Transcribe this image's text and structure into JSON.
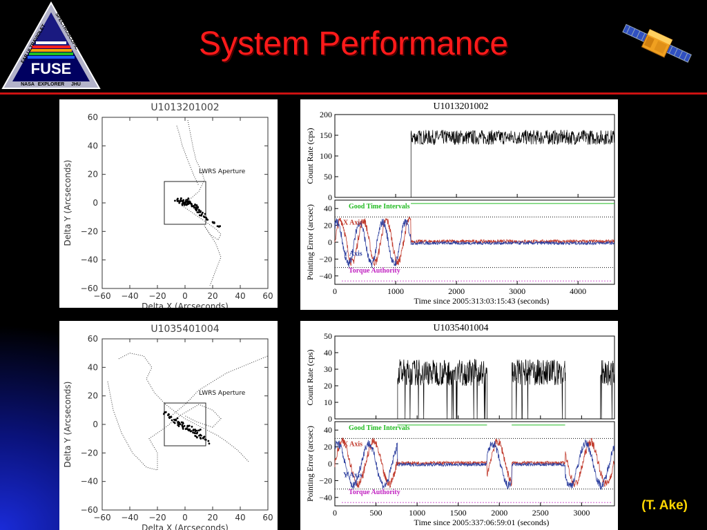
{
  "slide": {
    "title": "System Performance",
    "credit": "(T. Ake)",
    "accent": "#ff1a1a",
    "credit_color": "#ffd700"
  },
  "logo": {
    "arc_left": "FAR ULTRAVIOLET",
    "arc_right": "SPECTROSCOPIC",
    "name": "FUSE",
    "bottom_left": "NASA",
    "bottom_mid": "EXPLORER",
    "bottom_right": "JHU",
    "icon": "fuse-mission-logo-icon"
  },
  "satellite": {
    "icon": "satellite-icon"
  },
  "chart_data": [
    {
      "type": "scatter",
      "title": "U1013201002",
      "xlabel": "Delta X (Arcseconds)",
      "ylabel": "Delta Y (Arcseconds)",
      "xlim": [
        -60,
        60
      ],
      "ylim": [
        -60,
        60
      ],
      "xticks": [
        "−60",
        "−40",
        "−20",
        "0",
        "20",
        "40",
        "60"
      ],
      "yticks": [
        "60",
        "40",
        "20",
        "0",
        "−20",
        "−40",
        "−60"
      ],
      "annotation": "LWRS Aperture",
      "aperture_box": {
        "x": [
          -15,
          15
        ],
        "y": [
          -15,
          15
        ]
      },
      "track": [
        [
          2,
          58
        ],
        [
          4,
          48
        ],
        [
          6,
          38
        ],
        [
          8,
          30
        ],
        [
          12,
          22
        ],
        [
          14,
          16
        ],
        [
          10,
          8
        ],
        [
          4,
          3
        ],
        [
          0,
          0
        ],
        [
          -4,
          1
        ],
        [
          -2,
          -2
        ],
        [
          4,
          -6
        ],
        [
          10,
          -10
        ],
        [
          16,
          -14
        ],
        [
          22,
          -18
        ],
        [
          26,
          -22
        ],
        [
          24,
          -26
        ],
        [
          18,
          -22
        ],
        [
          14,
          -16
        ],
        [
          22,
          -28
        ],
        [
          26,
          -38
        ],
        [
          22,
          -48
        ],
        [
          18,
          -58
        ]
      ],
      "track2": [
        [
          -6,
          54
        ],
        [
          -4,
          48
        ],
        [
          -2,
          40
        ],
        [
          2,
          30
        ],
        [
          6,
          20
        ],
        [
          10,
          12
        ]
      ],
      "cluster": [
        [
          2,
          0
        ],
        [
          4,
          -1
        ],
        [
          6,
          -2
        ],
        [
          8,
          -4
        ],
        [
          10,
          -6
        ],
        [
          12,
          -8
        ],
        [
          14,
          -9
        ],
        [
          16,
          -11
        ],
        [
          20,
          -14
        ],
        [
          24,
          -16
        ],
        [
          0,
          1
        ],
        [
          -2,
          1
        ],
        [
          -4,
          2
        ],
        [
          -6,
          3
        ],
        [
          -3,
          0
        ],
        [
          1,
          -2
        ],
        [
          3,
          0
        ],
        [
          5,
          -1
        ],
        [
          7,
          -3
        ],
        [
          9,
          -5
        ],
        [
          -1,
          -1
        ],
        [
          2,
          2
        ]
      ]
    },
    {
      "type": "line",
      "title": "U1013201002",
      "xlabel": "Time since 2005:313:03:15:43 (seconds)",
      "xlim": [
        0,
        4600
      ],
      "xticks": [
        "0",
        "1000",
        "2000",
        "3000",
        "4000"
      ],
      "upper": {
        "ylabel": "Count Rate (cps)",
        "ylim": [
          0,
          200
        ],
        "yticks": [
          "200",
          "150",
          "100",
          "50",
          "0"
        ],
        "onset_time": 1250,
        "mean_rate": 145,
        "noise": 18
      },
      "lower": {
        "ylabel": "Pointing Error (arcsec)",
        "ylim": [
          -50,
          50
        ],
        "yticks": [
          "40",
          "20",
          "0",
          "−20",
          "−40"
        ],
        "series": [
          {
            "name": "X Axis",
            "color": "#c0392b"
          },
          {
            "name": "Y Axis",
            "color": "#2c3e9e"
          }
        ],
        "good_time_label": "Good Time Intervals",
        "good_time_color": "#22bb22",
        "good_time_ranges": [
          [
            1250,
            4600
          ]
        ],
        "torque_label": "Torque Authority",
        "torque_color": "#c020c0",
        "threshold": 30
      }
    },
    {
      "type": "scatter",
      "title": "U1035401004",
      "xlabel": "Delta X (Arcseconds)",
      "ylabel": "Delta Y (Arcseconds)",
      "xlim": [
        -60,
        60
      ],
      "ylim": [
        -60,
        60
      ],
      "xticks": [
        "−60",
        "−40",
        "−20",
        "0",
        "20",
        "40",
        "60"
      ],
      "yticks": [
        "60",
        "40",
        "20",
        "0",
        "−20",
        "−40",
        "−60"
      ],
      "annotation": "LWRS Aperture",
      "aperture_box": {
        "x": [
          -15,
          15
        ],
        "y": [
          -15,
          15
        ]
      },
      "track": [
        [
          -48,
          46
        ],
        [
          -40,
          50
        ],
        [
          -30,
          48
        ],
        [
          -24,
          40
        ],
        [
          -28,
          32
        ],
        [
          -22,
          22
        ],
        [
          -14,
          14
        ],
        [
          -6,
          8
        ],
        [
          0,
          4
        ],
        [
          8,
          0
        ],
        [
          16,
          -4
        ],
        [
          24,
          -8
        ],
        [
          30,
          -12
        ],
        [
          38,
          -18
        ],
        [
          46,
          -26
        ]
      ],
      "track2": [
        [
          -56,
          30
        ],
        [
          -52,
          10
        ],
        [
          -46,
          -6
        ],
        [
          -38,
          -20
        ],
        [
          -28,
          -30
        ],
        [
          -20,
          -32
        ],
        [
          -20,
          -20
        ],
        [
          -26,
          -10
        ],
        [
          -14,
          -2
        ],
        [
          -4,
          6
        ],
        [
          10,
          14
        ],
        [
          20,
          10
        ],
        [
          26,
          4
        ],
        [
          20,
          -2
        ],
        [
          8,
          2
        ],
        [
          0,
          6
        ]
      ],
      "track3": [
        [
          -10,
          6
        ],
        [
          0,
          14
        ],
        [
          10,
          24
        ],
        [
          20,
          30
        ],
        [
          30,
          36
        ],
        [
          40,
          40
        ],
        [
          50,
          44
        ],
        [
          60,
          48
        ]
      ],
      "cluster": [
        [
          -12,
          6
        ],
        [
          -10,
          4
        ],
        [
          -8,
          2
        ],
        [
          -6,
          1
        ],
        [
          -4,
          0
        ],
        [
          -2,
          -1
        ],
        [
          0,
          -2
        ],
        [
          2,
          -4
        ],
        [
          4,
          -5
        ],
        [
          6,
          -6
        ],
        [
          8,
          -7
        ],
        [
          10,
          -8
        ],
        [
          12,
          -9
        ],
        [
          14,
          -10
        ],
        [
          -6,
          3
        ],
        [
          -2,
          1
        ],
        [
          2,
          -1
        ],
        [
          6,
          -3
        ],
        [
          10,
          -5
        ],
        [
          -14,
          8
        ],
        [
          16,
          -12
        ]
      ]
    },
    {
      "type": "line",
      "title": "U1035401004",
      "xlabel": "Time since 2005:337:06:59:01 (seconds)",
      "xlim": [
        0,
        3400
      ],
      "xticks": [
        "0",
        "500",
        "1000",
        "1500",
        "2000",
        "2500",
        "3000"
      ],
      "upper": {
        "ylabel": "Count Rate (cps)",
        "ylim": [
          0,
          50
        ],
        "yticks": [
          "50",
          "40",
          "30",
          "20",
          "10",
          "0"
        ],
        "segments": [
          [
            760,
            1850
          ],
          [
            2150,
            2800
          ],
          [
            3230,
            3400
          ]
        ],
        "mean_rate": 28,
        "noise": 8
      },
      "lower": {
        "ylabel": "Pointing Error (arcsec)",
        "ylim": [
          -50,
          50
        ],
        "yticks": [
          "40",
          "20",
          "0",
          "−20",
          "−40"
        ],
        "series": [
          {
            "name": "X Axis",
            "color": "#c0392b"
          },
          {
            "name": "Y Axis",
            "color": "#2c3e9e"
          }
        ],
        "good_time_label": "Good Time Intervals",
        "good_time_color": "#22bb22",
        "good_time_ranges": [
          [
            760,
            1850
          ],
          [
            2150,
            2800
          ]
        ],
        "torque_label": "Torque Authority",
        "torque_color": "#c020c0",
        "threshold": 30
      }
    }
  ]
}
